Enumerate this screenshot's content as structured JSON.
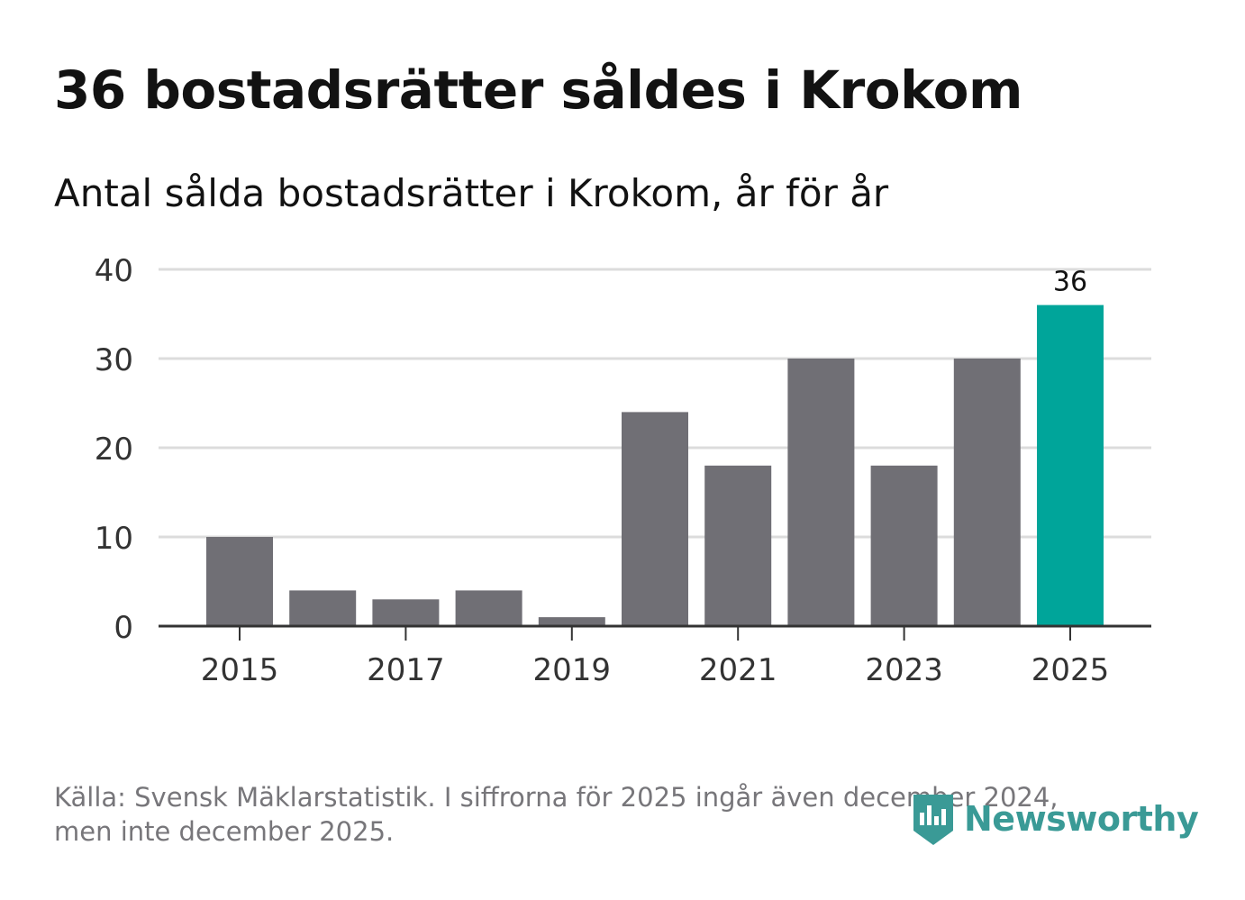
{
  "title": "36 bostadsrätter såldes i Krokom",
  "subtitle": "Antal sålda bostadsrätter i Krokom, år för år",
  "footer": {
    "line1": "Källa: Svensk Mäklarstatistik. I siffrorna för 2025 ingår även december 2024,",
    "line2": "men inte december 2025."
  },
  "logo": {
    "text": "Newsworthy",
    "icon": "newsworthy-bar-chart-icon",
    "color": "#3a9a96"
  },
  "colors": {
    "bar": "#706f75",
    "highlight": "#00a59a",
    "grid": "#dcdcdc",
    "axis": "#333333",
    "text": "#121212",
    "muted": "#77767a"
  },
  "chart_data": {
    "type": "bar",
    "title": "36 bostadsrätter såldes i Krokom",
    "subtitle": "Antal sålda bostadsrätter i Krokom, år för år",
    "xlabel": "",
    "ylabel": "",
    "ylim": [
      0,
      40
    ],
    "yticks": [
      0,
      10,
      20,
      30,
      40
    ],
    "grid": true,
    "categories": [
      "2015",
      "2016",
      "2017",
      "2018",
      "2019",
      "2020",
      "2021",
      "2022",
      "2023",
      "2024",
      "2025"
    ],
    "values": [
      10,
      4,
      3,
      4,
      1,
      24,
      18,
      30,
      18,
      30,
      36
    ],
    "xtick_labels": [
      "2015",
      "2017",
      "2019",
      "2021",
      "2023",
      "2025"
    ],
    "highlight_category": "2025",
    "data_labels": [
      {
        "category": "2025",
        "label": "36"
      }
    ]
  }
}
